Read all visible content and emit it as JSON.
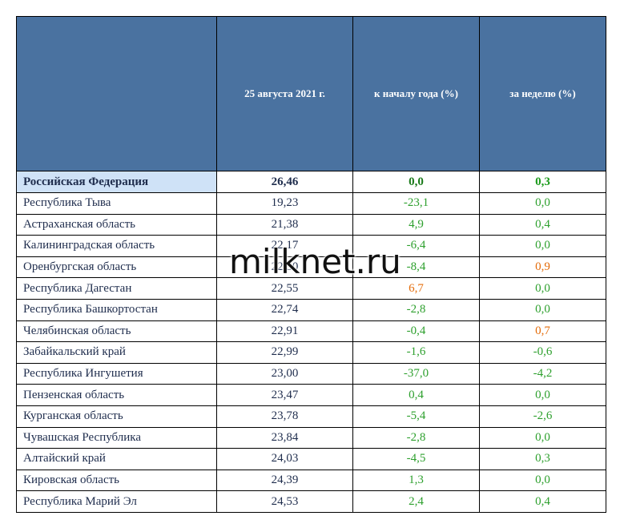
{
  "header": [
    "",
    "25 августа 2021 г.",
    "к началу года (%)",
    "за неделю (%)"
  ],
  "rows": [
    [
      "Российская Федерация",
      "26,46",
      "0,0",
      "0,3"
    ],
    [
      "Республика Тыва",
      "19,23",
      "-23,1",
      "0,0"
    ],
    [
      "Астраханская область",
      "21,38",
      "4,9",
      "0,4"
    ],
    [
      "Калининградская область",
      "22,17",
      "-6,4",
      "0,0"
    ],
    [
      "Оренбургская область",
      "22,50",
      "-8,4",
      "0,9"
    ],
    [
      "Республика Дагестан",
      "22,55",
      "6,7",
      "0,0"
    ],
    [
      "Республика Башкортостан",
      "22,74",
      "-2,8",
      "0,0"
    ],
    [
      "Челябинская область",
      "22,91",
      "-0,4",
      "0,7"
    ],
    [
      "Забайкальский край",
      "22,99",
      "-1,6",
      "-0,6"
    ],
    [
      "Республика Ингушетия",
      "23,00",
      "-37,0",
      "-4,2"
    ],
    [
      "Пензенская область",
      "23,47",
      "0,4",
      "0,0"
    ],
    [
      "Курганская область",
      "23,78",
      "-5,4",
      "-2,6"
    ],
    [
      "Чувашская Республика",
      "23,84",
      "-2,8",
      "0,0"
    ],
    [
      "Алтайский край",
      "24,03",
      "-4,5",
      "0,3"
    ],
    [
      "Кировская область",
      "24,39",
      "1,3",
      "0,0"
    ],
    [
      "Республика Марий Эл",
      "24,53",
      "2,4",
      "0,4"
    ]
  ],
  "colors": [
    [
      "#1f2d4d",
      "#1f2d4d",
      "#1a7a1a",
      "#1a9a1a"
    ],
    [
      "#1f2d4d",
      "#1f2d4d",
      "#2ea02e",
      "#2ea02e"
    ],
    [
      "#1f2d4d",
      "#1f2d4d",
      "#2ea02e",
      "#2ea02e"
    ],
    [
      "#1f2d4d",
      "#1f2d4d",
      "#2ea02e",
      "#2ea02e"
    ],
    [
      "#1f2d4d",
      "#1f2d4d",
      "#2ea02e",
      "#e46c0a"
    ],
    [
      "#1f2d4d",
      "#1f2d4d",
      "#e46c0a",
      "#2ea02e"
    ],
    [
      "#1f2d4d",
      "#1f2d4d",
      "#2ea02e",
      "#2ea02e"
    ],
    [
      "#1f2d4d",
      "#1f2d4d",
      "#2ea02e",
      "#e46c0a"
    ],
    [
      "#1f2d4d",
      "#1f2d4d",
      "#2ea02e",
      "#2ea02e"
    ],
    [
      "#1f2d4d",
      "#1f2d4d",
      "#2ea02e",
      "#2ea02e"
    ],
    [
      "#1f2d4d",
      "#1f2d4d",
      "#2ea02e",
      "#2ea02e"
    ],
    [
      "#1f2d4d",
      "#1f2d4d",
      "#2ea02e",
      "#2ea02e"
    ],
    [
      "#1f2d4d",
      "#1f2d4d",
      "#2ea02e",
      "#2ea02e"
    ],
    [
      "#1f2d4d",
      "#1f2d4d",
      "#2ea02e",
      "#2ea02e"
    ],
    [
      "#1f2d4d",
      "#1f2d4d",
      "#2ea02e",
      "#2ea02e"
    ],
    [
      "#1f2d4d",
      "#1f2d4d",
      "#2ea02e",
      "#2ea02e"
    ]
  ],
  "watermark": "milknet.ru"
}
